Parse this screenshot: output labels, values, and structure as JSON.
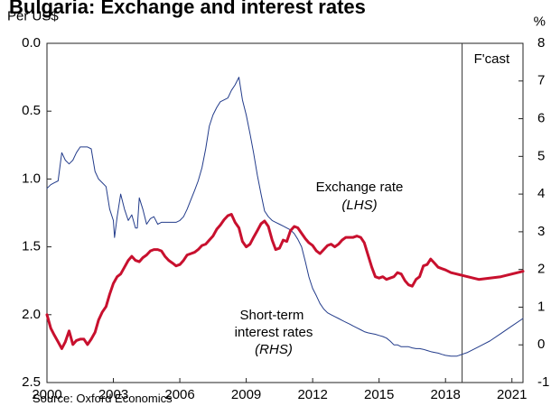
{
  "chart_data": {
    "type": "line",
    "title": "Bulgaria: Exchange and interest rates",
    "left_axis": {
      "label": "Per US$",
      "inverted": true,
      "min": 0.0,
      "max": 2.5,
      "ticks": [
        "0.0",
        "0.5",
        "1.0",
        "1.5",
        "2.0",
        "2.5"
      ]
    },
    "right_axis": {
      "label": "%",
      "min": -1,
      "max": 8,
      "ticks": [
        "8",
        "7",
        "6",
        "5",
        "4",
        "3",
        "2",
        "1",
        "0",
        "-1"
      ]
    },
    "x_axis": {
      "min": 2000,
      "max": 2021.5,
      "ticks": [
        "2000",
        "2003",
        "2006",
        "2009",
        "2012",
        "2015",
        "2018",
        "2021"
      ]
    },
    "forecast": {
      "x": 2018.75,
      "label": "F'cast"
    },
    "series": [
      {
        "name": "Exchange rate",
        "name_suffix": "(LHS)",
        "axis": "left",
        "color": "#c8102e",
        "points": [
          [
            2000.0,
            2.0
          ],
          [
            2000.17,
            2.1
          ],
          [
            2000.33,
            2.15
          ],
          [
            2000.5,
            2.2
          ],
          [
            2000.67,
            2.25
          ],
          [
            2000.83,
            2.2
          ],
          [
            2001.0,
            2.12
          ],
          [
            2001.17,
            2.22
          ],
          [
            2001.33,
            2.19
          ],
          [
            2001.5,
            2.18
          ],
          [
            2001.67,
            2.18
          ],
          [
            2001.83,
            2.22
          ],
          [
            2002.0,
            2.18
          ],
          [
            2002.17,
            2.13
          ],
          [
            2002.33,
            2.04
          ],
          [
            2002.5,
            1.98
          ],
          [
            2002.67,
            1.94
          ],
          [
            2002.83,
            1.85
          ],
          [
            2003.0,
            1.77
          ],
          [
            2003.17,
            1.72
          ],
          [
            2003.33,
            1.7
          ],
          [
            2003.5,
            1.65
          ],
          [
            2003.67,
            1.6
          ],
          [
            2003.83,
            1.57
          ],
          [
            2004.0,
            1.6
          ],
          [
            2004.17,
            1.61
          ],
          [
            2004.33,
            1.58
          ],
          [
            2004.5,
            1.56
          ],
          [
            2004.67,
            1.53
          ],
          [
            2004.83,
            1.52
          ],
          [
            2005.0,
            1.52
          ],
          [
            2005.17,
            1.53
          ],
          [
            2005.33,
            1.57
          ],
          [
            2005.5,
            1.6
          ],
          [
            2005.67,
            1.62
          ],
          [
            2005.83,
            1.64
          ],
          [
            2006.0,
            1.63
          ],
          [
            2006.17,
            1.6
          ],
          [
            2006.33,
            1.56
          ],
          [
            2006.5,
            1.55
          ],
          [
            2006.67,
            1.54
          ],
          [
            2006.83,
            1.52
          ],
          [
            2007.0,
            1.49
          ],
          [
            2007.17,
            1.48
          ],
          [
            2007.33,
            1.45
          ],
          [
            2007.5,
            1.42
          ],
          [
            2007.67,
            1.37
          ],
          [
            2007.83,
            1.34
          ],
          [
            2008.0,
            1.3
          ],
          [
            2008.17,
            1.27
          ],
          [
            2008.33,
            1.26
          ],
          [
            2008.5,
            1.32
          ],
          [
            2008.67,
            1.36
          ],
          [
            2008.83,
            1.46
          ],
          [
            2009.0,
            1.5
          ],
          [
            2009.17,
            1.48
          ],
          [
            2009.33,
            1.43
          ],
          [
            2009.5,
            1.38
          ],
          [
            2009.67,
            1.33
          ],
          [
            2009.83,
            1.31
          ],
          [
            2010.0,
            1.35
          ],
          [
            2010.17,
            1.45
          ],
          [
            2010.33,
            1.52
          ],
          [
            2010.5,
            1.51
          ],
          [
            2010.67,
            1.45
          ],
          [
            2010.83,
            1.46
          ],
          [
            2011.0,
            1.38
          ],
          [
            2011.17,
            1.35
          ],
          [
            2011.33,
            1.36
          ],
          [
            2011.5,
            1.4
          ],
          [
            2011.67,
            1.44
          ],
          [
            2011.83,
            1.47
          ],
          [
            2012.0,
            1.49
          ],
          [
            2012.17,
            1.53
          ],
          [
            2012.33,
            1.55
          ],
          [
            2012.5,
            1.52
          ],
          [
            2012.67,
            1.49
          ],
          [
            2012.83,
            1.48
          ],
          [
            2013.0,
            1.5
          ],
          [
            2013.17,
            1.48
          ],
          [
            2013.33,
            1.45
          ],
          [
            2013.5,
            1.43
          ],
          [
            2013.67,
            1.43
          ],
          [
            2013.83,
            1.43
          ],
          [
            2014.0,
            1.42
          ],
          [
            2014.17,
            1.43
          ],
          [
            2014.33,
            1.47
          ],
          [
            2014.5,
            1.56
          ],
          [
            2014.67,
            1.65
          ],
          [
            2014.83,
            1.72
          ],
          [
            2015.0,
            1.73
          ],
          [
            2015.17,
            1.72
          ],
          [
            2015.33,
            1.74
          ],
          [
            2015.5,
            1.73
          ],
          [
            2015.67,
            1.72
          ],
          [
            2015.83,
            1.69
          ],
          [
            2016.0,
            1.7
          ],
          [
            2016.17,
            1.75
          ],
          [
            2016.33,
            1.78
          ],
          [
            2016.5,
            1.79
          ],
          [
            2016.67,
            1.74
          ],
          [
            2016.83,
            1.72
          ],
          [
            2017.0,
            1.64
          ],
          [
            2017.17,
            1.63
          ],
          [
            2017.33,
            1.59
          ],
          [
            2017.5,
            1.62
          ],
          [
            2017.67,
            1.65
          ],
          [
            2017.83,
            1.66
          ],
          [
            2018.0,
            1.67
          ],
          [
            2018.25,
            1.69
          ],
          [
            2018.5,
            1.7
          ],
          [
            2018.75,
            1.71
          ],
          [
            2019.0,
            1.72
          ],
          [
            2019.5,
            1.74
          ],
          [
            2020.0,
            1.73
          ],
          [
            2020.5,
            1.72
          ],
          [
            2021.0,
            1.7
          ],
          [
            2021.5,
            1.68
          ]
        ]
      },
      {
        "name": "Short-term\ninterest rates",
        "name_suffix": "(RHS)",
        "axis": "right",
        "color": "#233c8b",
        "points": [
          [
            2000.0,
            4.15
          ],
          [
            2000.17,
            4.25
          ],
          [
            2000.33,
            4.3
          ],
          [
            2000.5,
            4.35
          ],
          [
            2000.67,
            5.1
          ],
          [
            2000.83,
            4.9
          ],
          [
            2001.0,
            4.8
          ],
          [
            2001.17,
            4.9
          ],
          [
            2001.33,
            5.1
          ],
          [
            2001.5,
            5.25
          ],
          [
            2001.67,
            5.25
          ],
          [
            2001.83,
            5.25
          ],
          [
            2002.0,
            5.2
          ],
          [
            2002.17,
            4.6
          ],
          [
            2002.33,
            4.4
          ],
          [
            2002.5,
            4.3
          ],
          [
            2002.67,
            4.2
          ],
          [
            2002.83,
            3.6
          ],
          [
            2003.0,
            3.3
          ],
          [
            2003.05,
            2.85
          ],
          [
            2003.17,
            3.4
          ],
          [
            2003.33,
            4.0
          ],
          [
            2003.5,
            3.6
          ],
          [
            2003.67,
            3.3
          ],
          [
            2003.83,
            3.45
          ],
          [
            2004.0,
            3.1
          ],
          [
            2004.08,
            3.1
          ],
          [
            2004.17,
            3.9
          ],
          [
            2004.33,
            3.6
          ],
          [
            2004.5,
            3.2
          ],
          [
            2004.67,
            3.35
          ],
          [
            2004.83,
            3.4
          ],
          [
            2005.0,
            3.2
          ],
          [
            2005.17,
            3.25
          ],
          [
            2005.33,
            3.25
          ],
          [
            2005.5,
            3.25
          ],
          [
            2005.67,
            3.25
          ],
          [
            2005.83,
            3.25
          ],
          [
            2006.0,
            3.3
          ],
          [
            2006.17,
            3.4
          ],
          [
            2006.33,
            3.6
          ],
          [
            2006.5,
            3.85
          ],
          [
            2006.67,
            4.1
          ],
          [
            2006.83,
            4.35
          ],
          [
            2007.0,
            4.7
          ],
          [
            2007.17,
            5.2
          ],
          [
            2007.33,
            5.8
          ],
          [
            2007.5,
            6.1
          ],
          [
            2007.67,
            6.3
          ],
          [
            2007.83,
            6.45
          ],
          [
            2008.0,
            6.5
          ],
          [
            2008.17,
            6.55
          ],
          [
            2008.33,
            6.75
          ],
          [
            2008.5,
            6.9
          ],
          [
            2008.67,
            7.1
          ],
          [
            2008.83,
            6.5
          ],
          [
            2009.0,
            6.1
          ],
          [
            2009.17,
            5.6
          ],
          [
            2009.33,
            5.1
          ],
          [
            2009.5,
            4.5
          ],
          [
            2009.67,
            4.0
          ],
          [
            2009.83,
            3.55
          ],
          [
            2010.0,
            3.4
          ],
          [
            2010.17,
            3.3
          ],
          [
            2010.33,
            3.25
          ],
          [
            2010.5,
            3.2
          ],
          [
            2010.67,
            3.15
          ],
          [
            2010.83,
            3.1
          ],
          [
            2011.0,
            3.05
          ],
          [
            2011.17,
            2.95
          ],
          [
            2011.33,
            2.8
          ],
          [
            2011.5,
            2.6
          ],
          [
            2011.67,
            2.2
          ],
          [
            2011.83,
            1.8
          ],
          [
            2012.0,
            1.5
          ],
          [
            2012.17,
            1.3
          ],
          [
            2012.33,
            1.1
          ],
          [
            2012.5,
            0.95
          ],
          [
            2012.67,
            0.85
          ],
          [
            2012.83,
            0.8
          ],
          [
            2013.0,
            0.75
          ],
          [
            2013.17,
            0.7
          ],
          [
            2013.33,
            0.65
          ],
          [
            2013.5,
            0.6
          ],
          [
            2013.67,
            0.55
          ],
          [
            2013.83,
            0.5
          ],
          [
            2014.0,
            0.45
          ],
          [
            2014.17,
            0.4
          ],
          [
            2014.33,
            0.35
          ],
          [
            2014.5,
            0.32
          ],
          [
            2014.67,
            0.3
          ],
          [
            2014.83,
            0.28
          ],
          [
            2015.0,
            0.25
          ],
          [
            2015.17,
            0.22
          ],
          [
            2015.33,
            0.18
          ],
          [
            2015.5,
            0.1
          ],
          [
            2015.67,
            0.0
          ],
          [
            2015.83,
            0.0
          ],
          [
            2016.0,
            -0.05
          ],
          [
            2016.17,
            -0.05
          ],
          [
            2016.33,
            -0.05
          ],
          [
            2016.5,
            -0.08
          ],
          [
            2016.67,
            -0.1
          ],
          [
            2016.83,
            -0.1
          ],
          [
            2017.0,
            -0.12
          ],
          [
            2017.17,
            -0.15
          ],
          [
            2017.33,
            -0.18
          ],
          [
            2017.5,
            -0.2
          ],
          [
            2017.67,
            -0.22
          ],
          [
            2017.83,
            -0.25
          ],
          [
            2018.0,
            -0.28
          ],
          [
            2018.25,
            -0.3
          ],
          [
            2018.5,
            -0.3
          ],
          [
            2018.75,
            -0.25
          ],
          [
            2019.0,
            -0.2
          ],
          [
            2019.5,
            -0.05
          ],
          [
            2020.0,
            0.1
          ],
          [
            2020.5,
            0.3
          ],
          [
            2021.0,
            0.5
          ],
          [
            2021.5,
            0.7
          ]
        ]
      }
    ],
    "source": "Source: Oxford Economics"
  }
}
